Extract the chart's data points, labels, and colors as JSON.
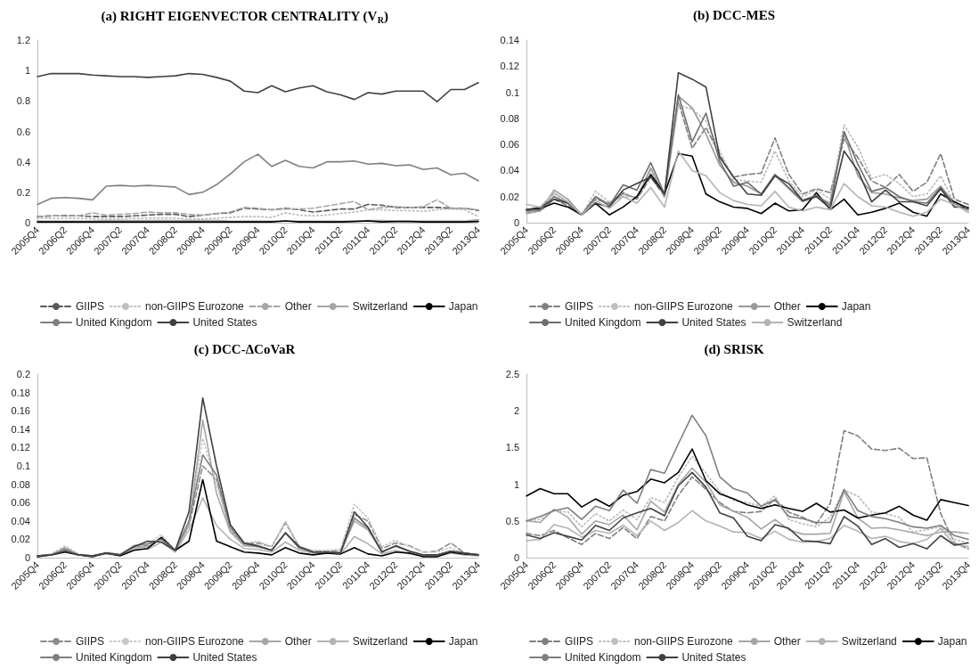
{
  "chart_data": [
    {
      "type": "line",
      "title": "(a) RIGHT EIGENVECTOR CENTRALITY (V$_{R}$)",
      "categories": [
        "2005Q4",
        null,
        "2006Q2",
        null,
        "2006Q4",
        null,
        "2007Q2",
        null,
        "2007Q4",
        null,
        "2008Q2",
        null,
        "2008Q4",
        null,
        "2009Q2",
        null,
        "2009Q4",
        null,
        "2010Q2",
        null,
        "2010Q4",
        null,
        "2011Q2",
        null,
        "2011Q4",
        null,
        "2012Q2",
        null,
        "2012Q4",
        null,
        "2013Q2",
        null,
        "2013Q4"
      ],
      "ylim": [
        0,
        1.2
      ],
      "yticks": [
        0,
        0.2,
        0.4,
        0.6,
        0.8,
        1,
        1.2
      ],
      "grid": false,
      "legend": "bottom",
      "marker": "none",
      "series": [
        {
          "name": "GIIPS",
          "color": "#595959",
          "line_style": "dashed",
          "values": [
            0.04,
            0.045,
            0.045,
            0.045,
            0.04,
            0.04,
            0.04,
            0.045,
            0.05,
            0.055,
            0.055,
            0.04,
            0.05,
            0.06,
            0.065,
            0.095,
            0.09,
            0.085,
            0.095,
            0.085,
            0.07,
            0.08,
            0.09,
            0.09,
            0.12,
            0.115,
            0.1,
            0.1,
            0.1,
            0.1,
            0.095,
            0.095,
            0.08
          ]
        },
        {
          "name": "non-GIIPS Eurozone",
          "color": "#bfbfbf",
          "line_style": "dotted",
          "values": [
            0.03,
            0.03,
            0.03,
            0.03,
            0.025,
            0.025,
            0.025,
            0.03,
            0.03,
            0.03,
            0.03,
            0.025,
            0.025,
            0.03,
            0.035,
            0.04,
            0.04,
            0.035,
            0.065,
            0.05,
            0.045,
            0.05,
            0.06,
            0.07,
            0.085,
            0.085,
            0.08,
            0.08,
            0.075,
            0.085,
            0.09,
            0.085,
            0.04
          ]
        },
        {
          "name": "Other",
          "color": "#a6a6a6",
          "line_style": "dashed",
          "values": [
            0.04,
            0.045,
            0.05,
            0.045,
            0.065,
            0.05,
            0.055,
            0.06,
            0.07,
            0.065,
            0.065,
            0.055,
            0.05,
            0.06,
            0.07,
            0.1,
            0.095,
            0.085,
            0.09,
            0.09,
            0.095,
            0.11,
            0.125,
            0.14,
            0.085,
            0.1,
            0.105,
            0.1,
            0.105,
            0.15,
            0.095,
            0.095,
            0.085
          ]
        },
        {
          "name": "Switzerland",
          "color": "#a6a6a6",
          "line_style": "solid",
          "values": [
            0.01,
            0.01,
            0.01,
            0.01,
            0.01,
            0.015,
            0.015,
            0.015,
            0.015,
            0.015,
            0.015,
            0.015,
            0.015,
            0.015,
            0.01,
            0.01,
            0.01,
            0.01,
            0.01,
            0.01,
            0.01,
            0.01,
            0.01,
            0.01,
            0.015,
            0.015,
            0.01,
            0.01,
            0.01,
            0.01,
            0.01,
            0.01,
            0.02
          ]
        },
        {
          "name": "Japan",
          "color": "#000000",
          "line_style": "solid",
          "values": [
            0.005,
            0.005,
            0.005,
            0.005,
            0.005,
            0.005,
            0.005,
            0.005,
            0.005,
            0.005,
            0.005,
            0.005,
            0.005,
            0.005,
            0.005,
            0.005,
            0.005,
            0.005,
            0.012,
            0.005,
            0.005,
            0.005,
            0.005,
            0.008,
            0.012,
            0.005,
            0.008,
            0.008,
            0.005,
            0.005,
            0.005,
            0.005,
            0.008
          ]
        },
        {
          "name": "United Kingdom",
          "color": "#7f7f7f",
          "line_style": "solid",
          "values": [
            0.12,
            0.16,
            0.165,
            0.16,
            0.15,
            0.24,
            0.245,
            0.24,
            0.245,
            0.24,
            0.235,
            0.185,
            0.2,
            0.25,
            0.32,
            0.4,
            0.45,
            0.37,
            0.41,
            0.37,
            0.36,
            0.4,
            0.4,
            0.405,
            0.385,
            0.39,
            0.375,
            0.38,
            0.35,
            0.36,
            0.315,
            0.325,
            0.275
          ]
        },
        {
          "name": "United States",
          "color": "#404040",
          "line_style": "solid",
          "values": [
            0.96,
            0.98,
            0.98,
            0.98,
            0.97,
            0.965,
            0.96,
            0.96,
            0.955,
            0.96,
            0.965,
            0.98,
            0.975,
            0.955,
            0.93,
            0.865,
            0.855,
            0.9,
            0.86,
            0.885,
            0.9,
            0.86,
            0.84,
            0.81,
            0.855,
            0.845,
            0.865,
            0.865,
            0.865,
            0.795,
            0.875,
            0.875,
            0.92
          ]
        }
      ]
    },
    {
      "type": "line",
      "title": "(b) DCC-MES",
      "categories": [
        "2005Q4",
        null,
        "2006Q2",
        null,
        "2006Q4",
        null,
        "2007Q2",
        null,
        "2007Q4",
        null,
        "2008Q2",
        null,
        "2008Q4",
        null,
        "2009Q2",
        null,
        "2009Q4",
        null,
        "2010Q2",
        null,
        "2010Q4",
        null,
        "2011Q2",
        null,
        "2011Q4",
        null,
        "2012Q2",
        null,
        "2012Q4",
        null,
        "2013Q2",
        null,
        "2013Q4"
      ],
      "ylim": [
        0,
        0.14
      ],
      "yticks": [
        0,
        0.02,
        0.04,
        0.06,
        0.08,
        0.1,
        0.12,
        0.14
      ],
      "grid": false,
      "legend": "bottom",
      "marker": "none",
      "series": [
        {
          "name": "GIIPS",
          "color": "#7f7f7f",
          "line_style": "dashed",
          "values": [
            0.008,
            0.009,
            0.018,
            0.013,
            0.006,
            0.018,
            0.015,
            0.023,
            0.018,
            0.035,
            0.02,
            0.093,
            0.057,
            0.073,
            0.052,
            0.035,
            0.037,
            0.038,
            0.065,
            0.037,
            0.022,
            0.026,
            0.023,
            0.064,
            0.05,
            0.032,
            0.027,
            0.037,
            0.024,
            0.031,
            0.053,
            0.018,
            0.014
          ]
        },
        {
          "name": "non-GIIPS Eurozone",
          "color": "#bfbfbf",
          "line_style": "dotted",
          "values": [
            0.008,
            0.01,
            0.022,
            0.016,
            0.006,
            0.024,
            0.016,
            0.02,
            0.02,
            0.04,
            0.019,
            0.09,
            0.087,
            0.078,
            0.055,
            0.033,
            0.032,
            0.031,
            0.055,
            0.032,
            0.02,
            0.025,
            0.018,
            0.075,
            0.058,
            0.034,
            0.037,
            0.03,
            0.02,
            0.022,
            0.036,
            0.015,
            0.012
          ]
        },
        {
          "name": "Other",
          "color": "#999999",
          "line_style": "solid",
          "values": [
            0.007,
            0.009,
            0.025,
            0.018,
            0.006,
            0.02,
            0.014,
            0.022,
            0.019,
            0.042,
            0.02,
            0.097,
            0.088,
            0.068,
            0.044,
            0.031,
            0.028,
            0.022,
            0.036,
            0.026,
            0.016,
            0.02,
            0.015,
            0.068,
            0.036,
            0.023,
            0.022,
            0.019,
            0.017,
            0.018,
            0.028,
            0.015,
            0.008
          ]
        },
        {
          "name": "Japan",
          "color": "#000000",
          "line_style": "solid",
          "values": [
            0.01,
            0.011,
            0.015,
            0.012,
            0.006,
            0.015,
            0.006,
            0.012,
            0.02,
            0.037,
            0.022,
            0.053,
            0.051,
            0.022,
            0.016,
            0.012,
            0.011,
            0.007,
            0.015,
            0.009,
            0.01,
            0.023,
            0.01,
            0.018,
            0.006,
            0.008,
            0.011,
            0.015,
            0.008,
            0.005,
            0.022,
            0.016,
            0.011
          ]
        },
        {
          "name": "United Kingdom",
          "color": "#6e6e6e",
          "line_style": "solid",
          "values": [
            0.009,
            0.01,
            0.02,
            0.015,
            0.006,
            0.02,
            0.013,
            0.029,
            0.025,
            0.046,
            0.022,
            0.098,
            0.062,
            0.084,
            0.047,
            0.028,
            0.031,
            0.022,
            0.037,
            0.027,
            0.017,
            0.021,
            0.013,
            0.07,
            0.045,
            0.024,
            0.027,
            0.02,
            0.016,
            0.015,
            0.027,
            0.014,
            0.01
          ]
        },
        {
          "name": "United States",
          "color": "#404040",
          "line_style": "solid",
          "values": [
            0.01,
            0.012,
            0.018,
            0.015,
            0.006,
            0.015,
            0.012,
            0.025,
            0.03,
            0.035,
            0.022,
            0.115,
            0.11,
            0.104,
            0.05,
            0.035,
            0.022,
            0.021,
            0.036,
            0.03,
            0.017,
            0.02,
            0.011,
            0.055,
            0.04,
            0.016,
            0.025,
            0.016,
            0.016,
            0.013,
            0.026,
            0.012,
            0.012
          ]
        },
        {
          "name": "Switzerland",
          "color": "#b3b3b3",
          "line_style": "solid",
          "values": [
            0.014,
            0.012,
            0.023,
            0.016,
            0.006,
            0.017,
            0.011,
            0.02,
            0.015,
            0.027,
            0.012,
            0.055,
            0.04,
            0.036,
            0.023,
            0.017,
            0.014,
            0.013,
            0.024,
            0.012,
            0.009,
            0.012,
            0.01,
            0.03,
            0.02,
            0.013,
            0.012,
            0.008,
            0.005,
            0.008,
            0.018,
            0.014,
            0.008
          ]
        }
      ]
    },
    {
      "type": "line",
      "title": "(c) DCC-ΔCoVaR",
      "categories": [
        "2005Q4",
        null,
        "2006Q2",
        null,
        "2006Q4",
        null,
        "2007Q2",
        null,
        "2007Q4",
        null,
        "2008Q2",
        null,
        "2008Q4",
        null,
        "2009Q2",
        null,
        "2009Q4",
        null,
        "2010Q2",
        null,
        "2010Q4",
        null,
        "2011Q2",
        null,
        "2011Q4",
        null,
        "2012Q2",
        null,
        "2012Q4",
        null,
        "2013Q2",
        null,
        "2013Q4"
      ],
      "ylim": [
        0,
        0.2
      ],
      "yticks": [
        0,
        0.02,
        0.04,
        0.06,
        0.08,
        0.1,
        0.12,
        0.14,
        0.16,
        0.18,
        0.2
      ],
      "grid": false,
      "legend": "bottom",
      "marker": "none",
      "series": [
        {
          "name": "GIIPS",
          "color": "#8c8c8c",
          "line_style": "dashed",
          "values": [
            0.002,
            0.003,
            0.011,
            0.003,
            0.002,
            0.005,
            0.003,
            0.012,
            0.013,
            0.022,
            0.008,
            0.035,
            0.1,
            0.085,
            0.03,
            0.015,
            0.016,
            0.012,
            0.038,
            0.012,
            0.007,
            0.007,
            0.008,
            0.047,
            0.04,
            0.01,
            0.016,
            0.013,
            0.006,
            0.007,
            0.016,
            0.005,
            0.003
          ]
        },
        {
          "name": "non-GIIPS Eurozone",
          "color": "#c8c8c8",
          "line_style": "dotted",
          "values": [
            0.002,
            0.004,
            0.013,
            0.004,
            0.002,
            0.006,
            0.004,
            0.012,
            0.015,
            0.025,
            0.008,
            0.038,
            0.13,
            0.08,
            0.03,
            0.016,
            0.018,
            0.012,
            0.04,
            0.012,
            0.008,
            0.008,
            0.009,
            0.058,
            0.043,
            0.012,
            0.019,
            0.012,
            0.006,
            0.006,
            0.011,
            0.004,
            0.003
          ]
        },
        {
          "name": "Other",
          "color": "#a6a6a6",
          "line_style": "solid",
          "values": [
            0.002,
            0.003,
            0.01,
            0.003,
            0.002,
            0.005,
            0.003,
            0.011,
            0.012,
            0.02,
            0.007,
            0.035,
            0.15,
            0.07,
            0.028,
            0.013,
            0.012,
            0.008,
            0.027,
            0.01,
            0.006,
            0.006,
            0.006,
            0.04,
            0.03,
            0.007,
            0.012,
            0.007,
            0.003,
            0.003,
            0.007,
            0.004,
            0.003
          ]
        },
        {
          "name": "Switzerland",
          "color": "#b3b3b3",
          "line_style": "solid",
          "values": [
            0.002,
            0.003,
            0.008,
            0.003,
            0.002,
            0.004,
            0.003,
            0.01,
            0.009,
            0.017,
            0.006,
            0.03,
            0.065,
            0.035,
            0.02,
            0.01,
            0.009,
            0.006,
            0.017,
            0.008,
            0.005,
            0.005,
            0.004,
            0.023,
            0.015,
            0.004,
            0.008,
            0.004,
            0.002,
            0.002,
            0.005,
            0.003,
            0.002
          ]
        },
        {
          "name": "Japan",
          "color": "#000000",
          "line_style": "solid",
          "values": [
            0.001,
            0.003,
            0.006,
            0.003,
            0.001,
            0.005,
            0.002,
            0.008,
            0.01,
            0.022,
            0.008,
            0.018,
            0.085,
            0.018,
            0.012,
            0.006,
            0.005,
            0.003,
            0.011,
            0.005,
            0.003,
            0.005,
            0.004,
            0.011,
            0.004,
            0.002,
            0.006,
            0.005,
            0.001,
            0.001,
            0.006,
            0.004,
            0.003
          ]
        },
        {
          "name": "United Kingdom",
          "color": "#7f7f7f",
          "line_style": "solid",
          "values": [
            0.002,
            0.003,
            0.009,
            0.003,
            0.002,
            0.005,
            0.003,
            0.013,
            0.015,
            0.02,
            0.008,
            0.04,
            0.112,
            0.09,
            0.033,
            0.015,
            0.012,
            0.008,
            0.027,
            0.011,
            0.006,
            0.006,
            0.005,
            0.043,
            0.032,
            0.006,
            0.013,
            0.007,
            0.003,
            0.003,
            0.007,
            0.005,
            0.003
          ]
        },
        {
          "name": "United States",
          "color": "#404040",
          "line_style": "solid",
          "values": [
            0.002,
            0.003,
            0.007,
            0.003,
            0.002,
            0.005,
            0.003,
            0.012,
            0.018,
            0.017,
            0.008,
            0.05,
            0.174,
            0.1,
            0.036,
            0.016,
            0.013,
            0.008,
            0.027,
            0.012,
            0.006,
            0.006,
            0.005,
            0.05,
            0.033,
            0.006,
            0.013,
            0.007,
            0.003,
            0.003,
            0.007,
            0.005,
            0.003
          ]
        }
      ]
    },
    {
      "type": "line",
      "title": "(d) SRISK",
      "categories": [
        "2005Q4",
        null,
        "2006Q2",
        null,
        "2006Q4",
        null,
        "2007Q2",
        null,
        "2007Q4",
        null,
        "2008Q2",
        null,
        "2008Q4",
        null,
        "2009Q2",
        null,
        "2009Q4",
        null,
        "2010Q2",
        null,
        "2010Q4",
        null,
        "2011Q2",
        null,
        "2011Q4",
        null,
        "2012Q2",
        null,
        "2012Q4",
        null,
        "2013Q2",
        null,
        "2013Q4"
      ],
      "ylim": [
        0,
        2.5
      ],
      "yticks": [
        0,
        0.5,
        1,
        1.5,
        2,
        2.5
      ],
      "grid": false,
      "legend": "bottom",
      "marker": "none",
      "series": [
        {
          "name": "GIIPS",
          "color": "#7f7f7f",
          "line_style": "dashed",
          "values": [
            0.33,
            0.3,
            0.37,
            0.27,
            0.18,
            0.33,
            0.26,
            0.41,
            0.26,
            0.56,
            0.5,
            0.85,
            1.1,
            0.93,
            0.75,
            0.63,
            0.61,
            0.63,
            0.8,
            0.62,
            0.55,
            0.46,
            0.74,
            1.73,
            1.66,
            1.48,
            1.46,
            1.49,
            1.35,
            1.36,
            0.6,
            0.2,
            0.12
          ]
        },
        {
          "name": "non-GIIPS Eurozone",
          "color": "#bfbfbf",
          "line_style": "dotted",
          "values": [
            0.5,
            0.52,
            0.64,
            0.62,
            0.42,
            0.6,
            0.5,
            0.65,
            0.52,
            0.82,
            0.75,
            1.1,
            1.38,
            1.15,
            0.9,
            0.78,
            0.75,
            0.7,
            0.84,
            0.52,
            0.46,
            0.42,
            0.55,
            0.92,
            0.84,
            0.62,
            0.6,
            0.55,
            0.35,
            0.38,
            0.42,
            0.25,
            0.2
          ]
        },
        {
          "name": "Other",
          "color": "#a6a6a6",
          "line_style": "solid",
          "values": [
            0.5,
            0.48,
            0.66,
            0.55,
            0.32,
            0.5,
            0.45,
            0.58,
            0.38,
            0.77,
            0.62,
            1.0,
            1.22,
            1.03,
            0.72,
            0.63,
            0.55,
            0.39,
            0.52,
            0.38,
            0.32,
            0.32,
            0.33,
            0.9,
            0.54,
            0.4,
            0.41,
            0.38,
            0.34,
            0.3,
            0.35,
            0.35,
            0.33
          ]
        },
        {
          "name": "Switzerland",
          "color": "#b3b3b3",
          "line_style": "solid",
          "values": [
            0.23,
            0.25,
            0.45,
            0.4,
            0.28,
            0.37,
            0.33,
            0.44,
            0.3,
            0.5,
            0.37,
            0.48,
            0.64,
            0.5,
            0.43,
            0.35,
            0.34,
            0.26,
            0.36,
            0.25,
            0.21,
            0.22,
            0.26,
            0.44,
            0.36,
            0.26,
            0.29,
            0.22,
            0.19,
            0.25,
            0.4,
            0.18,
            0.15
          ]
        },
        {
          "name": "Japan",
          "color": "#000000",
          "line_style": "solid",
          "values": [
            0.84,
            0.94,
            0.87,
            0.87,
            0.69,
            0.8,
            0.7,
            0.85,
            0.9,
            1.07,
            1.02,
            1.16,
            1.48,
            1.05,
            0.87,
            0.8,
            0.72,
            0.67,
            0.72,
            0.67,
            0.63,
            0.74,
            0.62,
            0.65,
            0.54,
            0.58,
            0.61,
            0.7,
            0.58,
            0.51,
            0.79,
            0.75,
            0.71
          ]
        },
        {
          "name": "United Kingdom",
          "color": "#7f7f7f",
          "line_style": "solid",
          "values": [
            0.5,
            0.56,
            0.64,
            0.68,
            0.52,
            0.7,
            0.64,
            0.92,
            0.74,
            1.2,
            1.15,
            1.55,
            1.94,
            1.66,
            1.1,
            0.94,
            0.88,
            0.7,
            0.79,
            0.56,
            0.53,
            0.48,
            0.48,
            0.93,
            0.64,
            0.56,
            0.53,
            0.48,
            0.42,
            0.4,
            0.44,
            0.3,
            0.25
          ]
        },
        {
          "name": "United States",
          "color": "#404040",
          "line_style": "solid",
          "values": [
            0.31,
            0.26,
            0.34,
            0.29,
            0.24,
            0.44,
            0.37,
            0.54,
            0.61,
            0.67,
            0.57,
            0.98,
            1.16,
            0.96,
            0.61,
            0.54,
            0.29,
            0.23,
            0.45,
            0.4,
            0.23,
            0.22,
            0.19,
            0.56,
            0.43,
            0.18,
            0.26,
            0.14,
            0.19,
            0.12,
            0.3,
            0.17,
            0.2
          ]
        }
      ]
    }
  ]
}
